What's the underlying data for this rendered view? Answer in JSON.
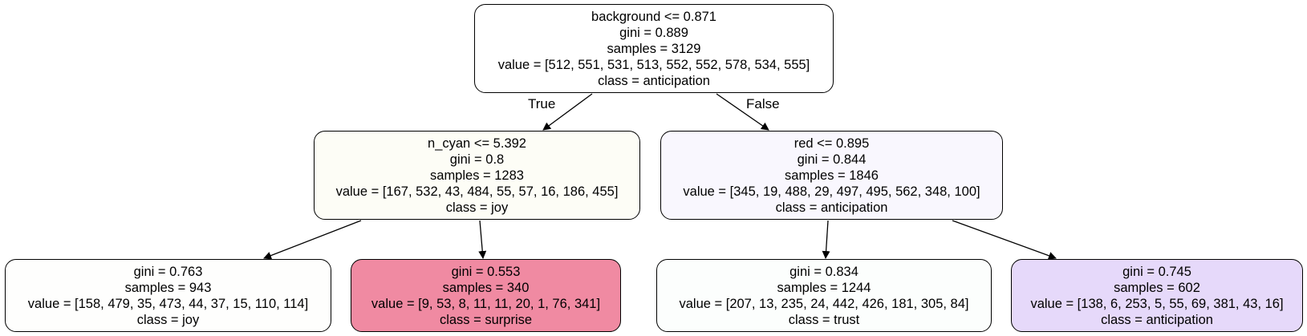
{
  "nodes": [
    {
      "id": "root",
      "lines": [
        "background <= 0.871",
        "gini = 0.889",
        "samples = 3129",
        "value = [512, 551, 531, 513, 552, 552, 578, 534, 555]",
        "class = anticipation"
      ],
      "fill": "#ffffff"
    },
    {
      "id": "left",
      "lines": [
        "n_cyan <= 5.392",
        "gini = 0.8",
        "samples = 1283",
        "value = [167, 532, 43, 484, 55, 57, 16, 186, 455]",
        "class = joy"
      ],
      "fill": "#fdfdf6"
    },
    {
      "id": "right",
      "lines": [
        "red <= 0.895",
        "gini = 0.844",
        "samples = 1846",
        "value = [345, 19, 488, 29, 497, 495, 562, 348, 100]",
        "class = anticipation"
      ],
      "fill": "#f9f7fe"
    },
    {
      "id": "leaf1",
      "lines": [
        "gini = 0.763",
        "samples = 943",
        "value = [158, 479, 35, 473, 44, 37, 15, 110, 114]",
        "class = joy"
      ],
      "fill": "#fefefd"
    },
    {
      "id": "leaf2",
      "lines": [
        "gini = 0.553",
        "samples = 340",
        "value = [9, 53, 8, 11, 11, 20, 1, 76, 341]",
        "class = surprise"
      ],
      "fill": "#f08aa2"
    },
    {
      "id": "leaf3",
      "lines": [
        "gini = 0.834",
        "samples = 1244",
        "value = [207, 13, 235, 24, 442, 426, 181, 305, 84]",
        "class = trust"
      ],
      "fill": "#fcfefd"
    },
    {
      "id": "leaf4",
      "lines": [
        "gini = 0.745",
        "samples = 602",
        "value = [138, 6, 253, 5, 55, 69, 381, 43, 16]",
        "class = anticipation"
      ],
      "fill": "#e6d9fa"
    }
  ],
  "edges": [
    {
      "from": "root",
      "to": "left",
      "label": "True"
    },
    {
      "from": "root",
      "to": "right",
      "label": "False"
    },
    {
      "from": "left",
      "to": "leaf1",
      "label": ""
    },
    {
      "from": "left",
      "to": "leaf2",
      "label": ""
    },
    {
      "from": "right",
      "to": "leaf3",
      "label": ""
    },
    {
      "from": "right",
      "to": "leaf4",
      "label": ""
    }
  ]
}
